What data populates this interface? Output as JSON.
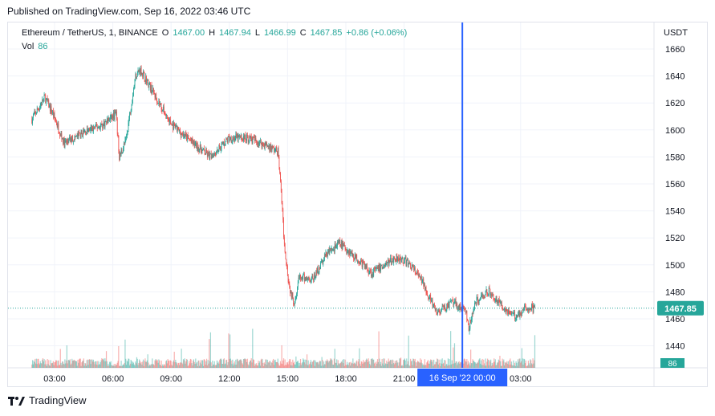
{
  "header": {
    "published": "Published on TradingView.com, Sep 16, 2022 03:46 UTC"
  },
  "legend": {
    "symbol": "Ethereum / TetherUS, 1, BINANCE",
    "open_label": "O",
    "open": "1467.00",
    "high_label": "H",
    "high": "1467.94",
    "low_label": "L",
    "low": "1466.99",
    "close_label": "C",
    "close": "1467.85",
    "change": "+0.86 (+0.06%)",
    "vol_label": "Vol",
    "vol": "86"
  },
  "footer": {
    "brand": "TradingView",
    "logo_icon": "tradingview-logo-icon"
  },
  "colors": {
    "up": "#26a69a",
    "down": "#ef5350",
    "crosshair": "#2962ff",
    "last_price_bg": "#26a69a",
    "grid": "#f0f3fa",
    "text": "#131722"
  },
  "chart_data": {
    "type": "candlestick",
    "symbol": "Ethereum / TetherUS",
    "interval": "1",
    "exchange": "BINANCE",
    "price_axis_unit": "USDT",
    "y_ticks": [
      1440,
      1460,
      1480,
      1500,
      1520,
      1540,
      1560,
      1580,
      1600,
      1620,
      1640,
      1660
    ],
    "x_ticks": [
      "03:00",
      "06:00",
      "09:00",
      "12:00",
      "15:00",
      "18:00",
      "21:00",
      "03:00"
    ],
    "crosshair_label": "16 Sep '22   00:00",
    "last_price": "1467.85",
    "last_volume": "86",
    "grid": true,
    "price_path": [
      {
        "t": "01:50",
        "p": 1608
      },
      {
        "t": "02:30",
        "p": 1624
      },
      {
        "t": "02:55",
        "p": 1612
      },
      {
        "t": "03:30",
        "p": 1590
      },
      {
        "t": "04:30",
        "p": 1598
      },
      {
        "t": "05:30",
        "p": 1604
      },
      {
        "t": "06:10",
        "p": 1612
      },
      {
        "t": "06:20",
        "p": 1580
      },
      {
        "t": "06:40",
        "p": 1592
      },
      {
        "t": "07:10",
        "p": 1640
      },
      {
        "t": "07:25",
        "p": 1645
      },
      {
        "t": "08:00",
        "p": 1630
      },
      {
        "t": "09:00",
        "p": 1604
      },
      {
        "t": "10:00",
        "p": 1592
      },
      {
        "t": "11:00",
        "p": 1580
      },
      {
        "t": "12:00",
        "p": 1594
      },
      {
        "t": "13:00",
        "p": 1594
      },
      {
        "t": "14:00",
        "p": 1588
      },
      {
        "t": "14:30",
        "p": 1584
      },
      {
        "t": "14:40",
        "p": 1555
      },
      {
        "t": "14:50",
        "p": 1515
      },
      {
        "t": "15:05",
        "p": 1484
      },
      {
        "t": "15:20",
        "p": 1472
      },
      {
        "t": "15:35",
        "p": 1490
      },
      {
        "t": "16:20",
        "p": 1490
      },
      {
        "t": "17:00",
        "p": 1508
      },
      {
        "t": "17:40",
        "p": 1516
      },
      {
        "t": "18:20",
        "p": 1508
      },
      {
        "t": "19:20",
        "p": 1494
      },
      {
        "t": "20:40",
        "p": 1506
      },
      {
        "t": "21:20",
        "p": 1500
      },
      {
        "t": "22:00",
        "p": 1486
      },
      {
        "t": "22:40",
        "p": 1464
      },
      {
        "t": "23:30",
        "p": 1472
      },
      {
        "t": "00:10",
        "p": 1466
      },
      {
        "t": "00:20",
        "p": 1452
      },
      {
        "t": "00:40",
        "p": 1472
      },
      {
        "t": "01:20",
        "p": 1481
      },
      {
        "t": "02:00",
        "p": 1470
      },
      {
        "t": "02:40",
        "p": 1462
      },
      {
        "t": "03:20",
        "p": 1468
      },
      {
        "t": "03:45",
        "p": 1467.85
      }
    ]
  }
}
